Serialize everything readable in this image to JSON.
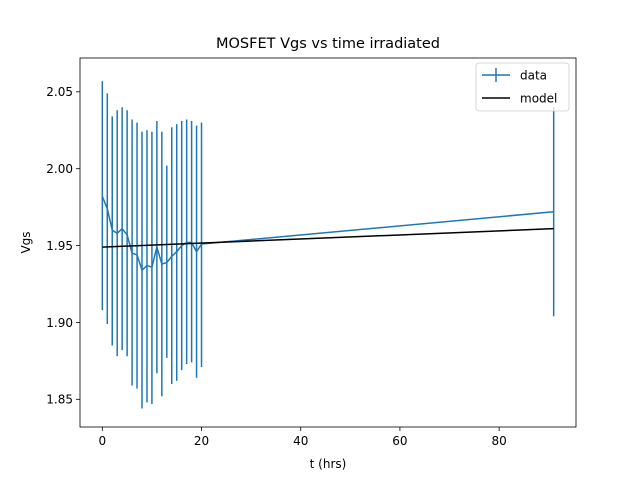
{
  "chart_data": {
    "type": "line",
    "title": "MOSFET Vgs vs time irradiated",
    "xlabel": "t (hrs)",
    "ylabel": "Vgs",
    "xlim": [
      -4.5,
      95.5
    ],
    "ylim": [
      1.832,
      2.072
    ],
    "xticks": [
      0,
      20,
      40,
      60,
      80
    ],
    "yticks": [
      1.85,
      1.9,
      1.95,
      2.0,
      2.05
    ],
    "xtick_labels": [
      "0",
      "20",
      "40",
      "60",
      "80"
    ],
    "ytick_labels": [
      "1.85",
      "1.90",
      "1.95",
      "2.00",
      "2.05"
    ],
    "grid": false,
    "legend": "top-right",
    "series": [
      {
        "name": "data",
        "kind": "errorbar",
        "color": "#1f77b4",
        "points": [
          {
            "x": 0,
            "y": 1.982,
            "lo": 1.908,
            "hi": 2.057
          },
          {
            "x": 1,
            "y": 1.974,
            "lo": 1.899,
            "hi": 2.049
          },
          {
            "x": 2,
            "y": 1.96,
            "lo": 1.885,
            "hi": 2.034
          },
          {
            "x": 3,
            "y": 1.958,
            "lo": 1.878,
            "hi": 2.038
          },
          {
            "x": 4,
            "y": 1.961,
            "lo": 1.882,
            "hi": 2.04
          },
          {
            "x": 5,
            "y": 1.957,
            "lo": 1.878,
            "hi": 2.038
          },
          {
            "x": 6,
            "y": 1.945,
            "lo": 1.859,
            "hi": 2.032
          },
          {
            "x": 7,
            "y": 1.944,
            "lo": 1.857,
            "hi": 2.03
          },
          {
            "x": 8,
            "y": 1.934,
            "lo": 1.844,
            "hi": 2.024
          },
          {
            "x": 9,
            "y": 1.937,
            "lo": 1.848,
            "hi": 2.025
          },
          {
            "x": 10,
            "y": 1.936,
            "lo": 1.847,
            "hi": 2.024
          },
          {
            "x": 11,
            "y": 1.949,
            "lo": 1.867,
            "hi": 2.031
          },
          {
            "x": 12,
            "y": 1.938,
            "lo": 1.852,
            "hi": 2.024
          },
          {
            "x": 13,
            "y": 1.939,
            "lo": 1.877,
            "hi": 2.002
          },
          {
            "x": 14,
            "y": 1.943,
            "lo": 1.86,
            "hi": 2.027
          },
          {
            "x": 15,
            "y": 1.946,
            "lo": 1.862,
            "hi": 2.029
          },
          {
            "x": 16,
            "y": 1.95,
            "lo": 1.869,
            "hi": 2.031
          },
          {
            "x": 17,
            "y": 1.952,
            "lo": 1.873,
            "hi": 2.032
          },
          {
            "x": 18,
            "y": 1.952,
            "lo": 1.874,
            "hi": 2.031
          },
          {
            "x": 19,
            "y": 1.946,
            "lo": 1.864,
            "hi": 2.028
          },
          {
            "x": 20,
            "y": 1.951,
            "lo": 1.871,
            "hi": 2.03
          },
          {
            "x": 91,
            "y": 1.972,
            "lo": 1.904,
            "hi": 2.04
          }
        ]
      },
      {
        "name": "model",
        "kind": "line",
        "color": "#000000",
        "x": [
          0,
          91
        ],
        "y": [
          1.949,
          1.961
        ]
      }
    ]
  }
}
